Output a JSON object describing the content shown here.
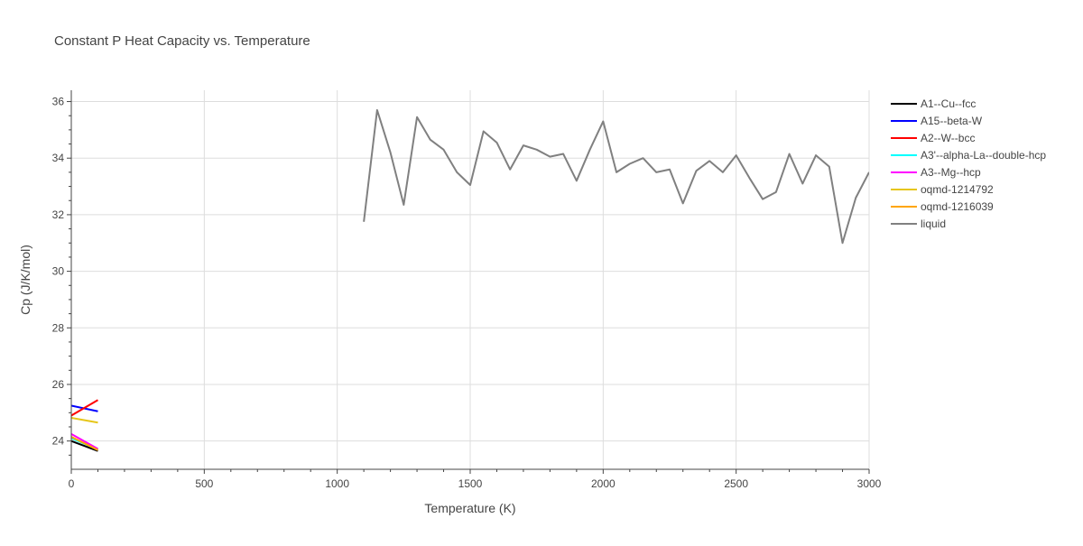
{
  "chart_data": {
    "type": "line",
    "title": "Constant P Heat Capacity vs. Temperature",
    "xlabel": "Temperature (K)",
    "ylabel": "Cp (J/K/mol)",
    "xlim": [
      0,
      3000
    ],
    "ylim": [
      23,
      36.4
    ],
    "x_major_ticks": [
      0,
      500,
      1000,
      1500,
      2000,
      2500,
      3000
    ],
    "x_tick_labels": [
      "0",
      "500",
      "1000",
      "1500",
      "2000",
      "2500",
      "3000"
    ],
    "y_major_ticks": [
      24,
      26,
      28,
      30,
      32,
      34,
      36
    ],
    "y_tick_labels": [
      "24",
      "26",
      "28",
      "30",
      "32",
      "34",
      "36"
    ],
    "grid": true,
    "legend_position": "top-right outside",
    "series": [
      {
        "name": "A1--Cu--fcc",
        "color": "#000000",
        "x": [
          0,
          100
        ],
        "y": [
          24.0,
          23.65
        ]
      },
      {
        "name": "A15--beta-W",
        "color": "#0000ff",
        "x": [
          0,
          100
        ],
        "y": [
          25.25,
          25.05
        ]
      },
      {
        "name": "A2--W--bcc",
        "color": "#ff0000",
        "x": [
          0,
          100
        ],
        "y": [
          24.9,
          25.45
        ]
      },
      {
        "name": "A3'--alpha-La--double-hcp",
        "color": "#00ffff",
        "x": [
          0,
          100
        ],
        "y": [
          24.1,
          23.7
        ]
      },
      {
        "name": "A3--Mg--hcp",
        "color": "#ff00ff",
        "x": [
          0,
          100
        ],
        "y": [
          24.25,
          23.72
        ]
      },
      {
        "name": "oqmd-1214792",
        "color": "#e6c619",
        "x": [
          0,
          100
        ],
        "y": [
          24.82,
          24.65
        ]
      },
      {
        "name": "oqmd-1216039",
        "color": "#ffa500",
        "x": [
          0,
          100
        ],
        "y": [
          24.15,
          23.68
        ]
      },
      {
        "name": "liquid",
        "color": "#808080",
        "x": [
          1100,
          1150,
          1200,
          1250,
          1300,
          1350,
          1400,
          1450,
          1500,
          1550,
          1600,
          1650,
          1700,
          1750,
          1800,
          1850,
          1900,
          1950,
          2000,
          2050,
          2100,
          2150,
          2200,
          2250,
          2300,
          2350,
          2400,
          2450,
          2500,
          2550,
          2600,
          2650,
          2700,
          2750,
          2800,
          2850,
          2900,
          2950,
          3000
        ],
        "y": [
          31.75,
          35.7,
          34.2,
          32.35,
          35.45,
          34.65,
          34.3,
          33.5,
          33.05,
          34.95,
          34.55,
          33.6,
          34.45,
          34.3,
          34.05,
          34.15,
          33.2,
          34.3,
          35.3,
          33.5,
          33.8,
          34.0,
          33.5,
          33.6,
          32.4,
          33.55,
          33.9,
          33.5,
          34.1,
          33.3,
          32.55,
          32.8,
          34.15,
          33.1,
          34.1,
          33.7,
          31.0,
          32.6,
          33.5
        ]
      }
    ]
  }
}
